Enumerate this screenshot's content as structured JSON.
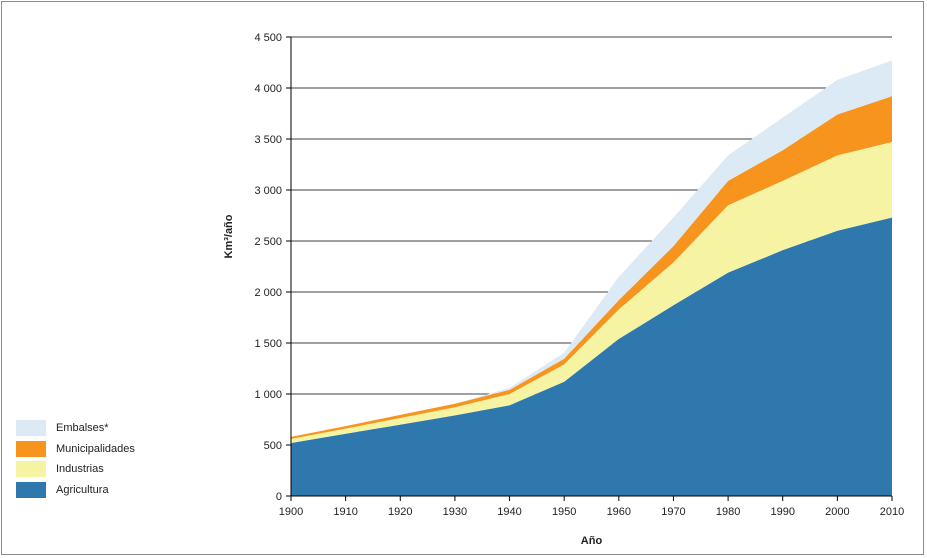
{
  "chart_data": {
    "type": "area",
    "stacked": true,
    "xlabel": "Año",
    "ylabel": "Km³/año",
    "xlim": [
      1900,
      2010
    ],
    "ylim": [
      0,
      4500
    ],
    "x_ticks": [
      1900,
      1910,
      1920,
      1930,
      1940,
      1950,
      1960,
      1970,
      1980,
      1990,
      2000,
      2010
    ],
    "y_ticks": [
      0,
      500,
      1000,
      1500,
      2000,
      2500,
      3000,
      3500,
      4000,
      4500
    ],
    "y_tick_labels": [
      "0",
      "500",
      "1 000",
      "1 500",
      "2 000",
      "2 500",
      "3 000",
      "3 500",
      "4 000",
      "4 500"
    ],
    "x": [
      1900,
      1910,
      1920,
      1930,
      1940,
      1950,
      1960,
      1970,
      1980,
      1990,
      2000,
      2010
    ],
    "series": [
      {
        "name": "Agricultura",
        "color": "#2e78ae",
        "values": [
          520,
          610,
          700,
          790,
          890,
          1120,
          1540,
          1870,
          2190,
          2410,
          2600,
          2730
        ]
      },
      {
        "name": "Industrias",
        "color": "#f6f3a3",
        "values": [
          40,
          50,
          65,
          80,
          110,
          170,
          290,
          420,
          660,
          680,
          740,
          740
        ]
      },
      {
        "name": "Municipalidades",
        "color": "#f7941d",
        "values": [
          20,
          25,
          30,
          35,
          40,
          55,
          90,
          160,
          240,
          300,
          400,
          450
        ]
      },
      {
        "name": "Embalses*",
        "color": "#dceaf5",
        "values": [
          0,
          0,
          0,
          0,
          20,
          60,
          230,
          280,
          250,
          320,
          340,
          350
        ]
      }
    ],
    "legend_position": "bottom-left",
    "grid": "horizontal"
  }
}
